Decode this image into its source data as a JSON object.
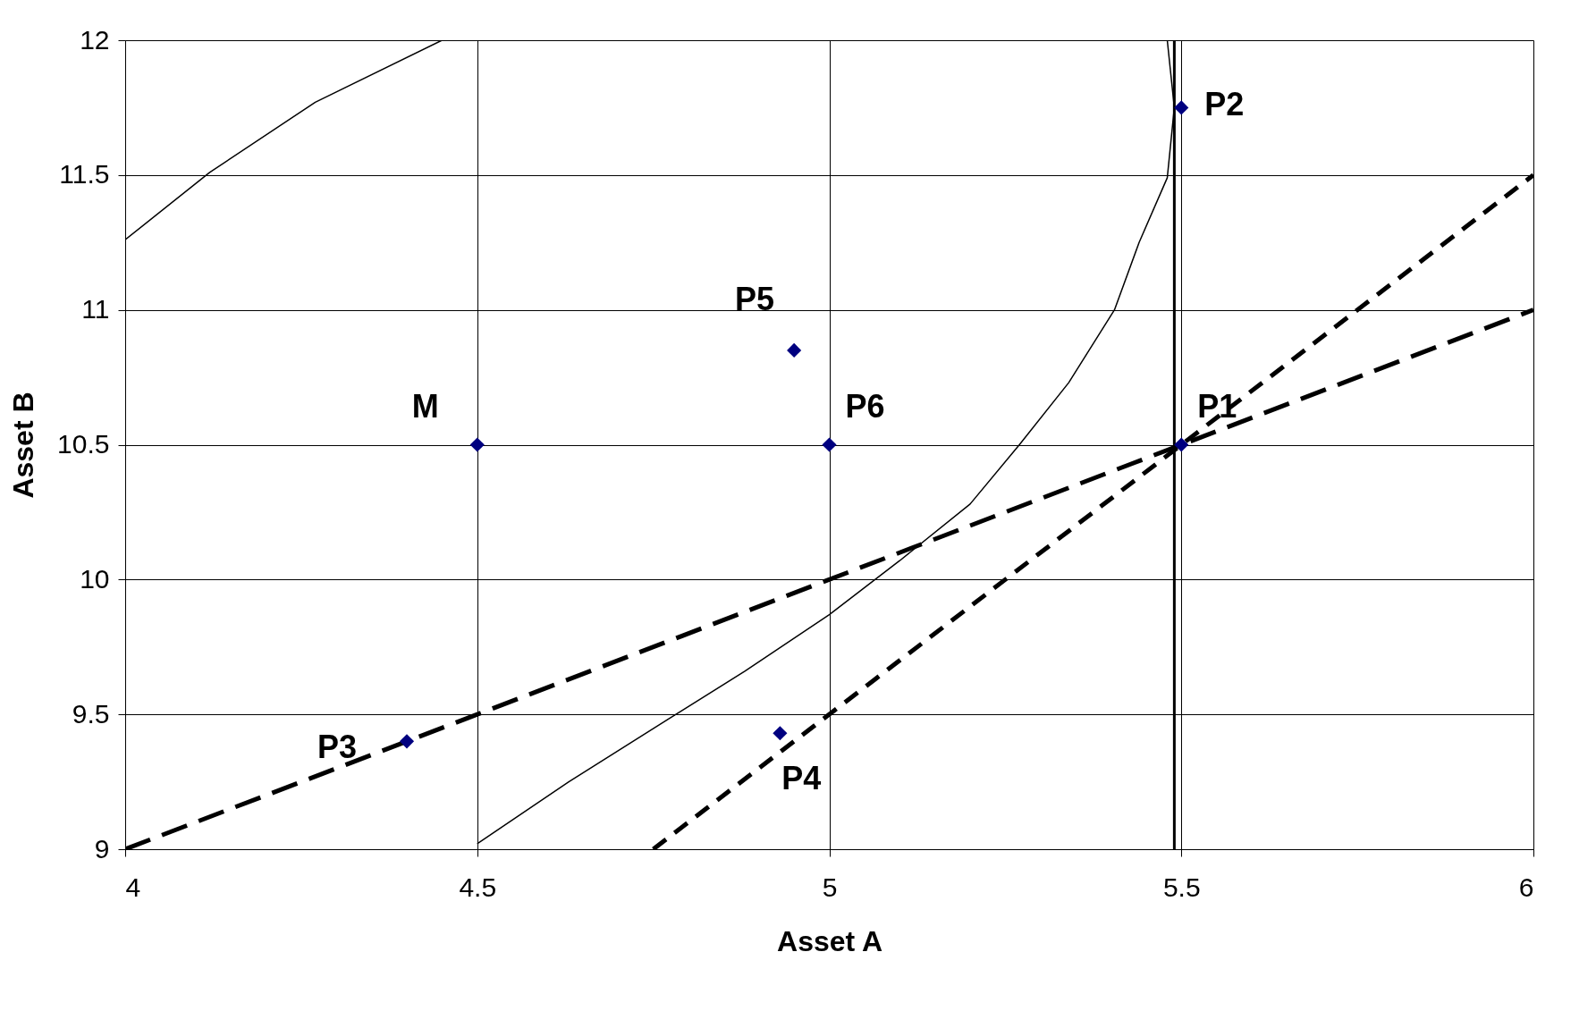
{
  "chart_data": {
    "type": "scatter",
    "xlabel": "Asset A",
    "ylabel": "Asset B",
    "xlim": [
      4,
      6
    ],
    "ylim": [
      9,
      12
    ],
    "xticks": [
      4,
      4.5,
      5,
      5.5,
      6
    ],
    "yticks": [
      9,
      9.5,
      10,
      10.5,
      11,
      11.5,
      12
    ],
    "grid": true,
    "series": [
      {
        "marker": "diamond",
        "color": "#000080",
        "x": [
          4.5,
          5.5,
          5.5,
          4.4,
          4.93,
          4.95,
          5.0
        ],
        "values": [
          10.5,
          10.5,
          11.75,
          9.4,
          9.43,
          10.85,
          10.5
        ]
      },
      {
        "type": "line",
        "color": "#000000",
        "line_style": "dashed",
        "x": [
          4,
          6
        ],
        "values": [
          9,
          11
        ]
      },
      {
        "type": "line",
        "color": "#000000",
        "line_style": "dotted",
        "x": [
          4.75,
          6
        ],
        "values": [
          9,
          11.5
        ]
      },
      {
        "type": "line",
        "color": "#000000",
        "line_style": "solid",
        "x": [
          5.48,
          5.49,
          5.48,
          5.44,
          5.405,
          5.34,
          5.27,
          5.2,
          5.1,
          5.0,
          4.88,
          4.77,
          4.63,
          4.5
        ],
        "values": [
          12,
          11.75,
          11.49,
          11.25,
          11.0,
          10.73,
          10.5,
          10.28,
          10.07,
          9.87,
          9.66,
          9.48,
          9.25,
          9.02
        ]
      },
      {
        "type": "line",
        "color": "#000000",
        "line_style": "solid",
        "x": [
          4,
          4.12,
          4.27,
          4.45
        ],
        "values": [
          11.26,
          11.51,
          11.77,
          12
        ]
      }
    ],
    "ref_lines": [
      {
        "axis": "x",
        "value": 5.49,
        "color": "#000000",
        "line_style": "solid"
      }
    ],
    "annotations": [
      {
        "text": "M",
        "x": 4.5,
        "y": 10.5
      },
      {
        "text": "P1",
        "x": 5.5,
        "y": 10.5
      },
      {
        "text": "P2",
        "x": 5.5,
        "y": 11.75
      },
      {
        "text": "P3",
        "x": 4.4,
        "y": 9.4
      },
      {
        "text": "P4",
        "x": 4.93,
        "y": 9.43
      },
      {
        "text": "P5",
        "x": 4.95,
        "y": 10.85
      },
      {
        "text": "P6",
        "x": 5.0,
        "y": 10.5
      }
    ]
  }
}
